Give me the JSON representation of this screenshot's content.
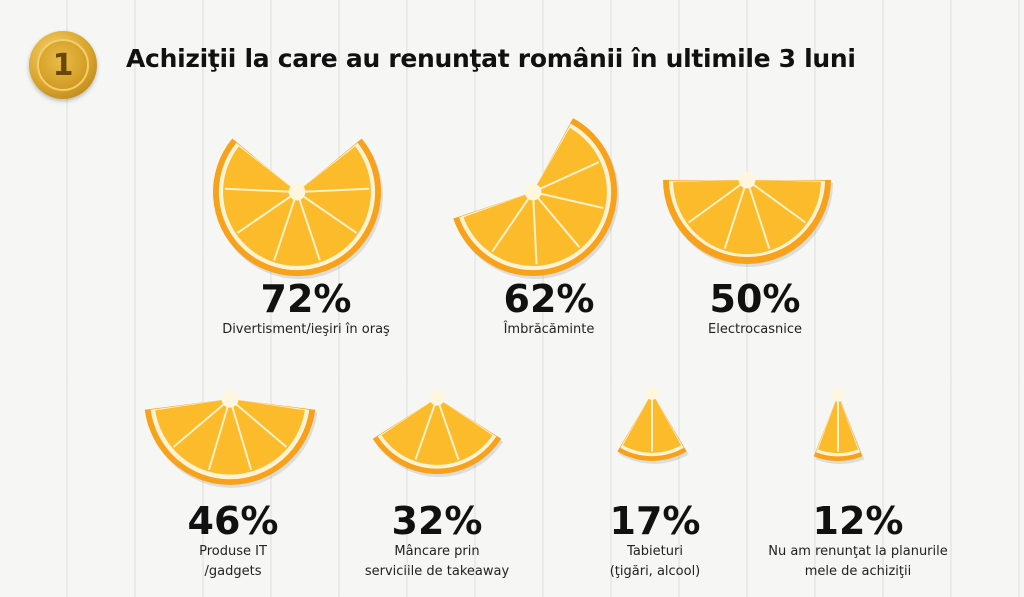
{
  "medal_number": "1",
  "title": "Achiziţii la care au renunţat românii în ultimile 3 luni",
  "colors": {
    "orange_rind": "#f7a21a",
    "orange_pulp": "#fbbb2a",
    "pith": "#fff3d6",
    "medal_gold": "#d9a42c"
  },
  "chart_data": {
    "type": "pie",
    "title": "Achiziţii la care au renunţat românii în ultimile 3 luni",
    "unit": "%",
    "categories": [
      "Divertisment/ieşiri în oraş",
      "Îmbrăcăminte",
      "Electrocasnice",
      "Produse IT /gadgets",
      "Mâncare prin serviciile de takeaway",
      "Tabieturi (ţigări, alcool)",
      "Nu am renunţat la planurile mele de achiziţii"
    ],
    "values": [
      72,
      62,
      50,
      46,
      32,
      17,
      12
    ],
    "items": [
      {
        "value": 72,
        "value_label": "72%",
        "label_lines": [
          "Divertisment/ieşiri în oraş"
        ]
      },
      {
        "value": 62,
        "value_label": "62%",
        "label_lines": [
          "Îmbrăcăminte"
        ]
      },
      {
        "value": 50,
        "value_label": "50%",
        "label_lines": [
          "Electrocasnice"
        ]
      },
      {
        "value": 46,
        "value_label": "46%",
        "label_lines": [
          "Produse IT",
          "/gadgets"
        ]
      },
      {
        "value": 32,
        "value_label": "32%",
        "label_lines": [
          "Mâncare prin",
          "serviciile de takeaway"
        ]
      },
      {
        "value": 17,
        "value_label": "17%",
        "label_lines": [
          "Tabieturi",
          "(ţigări, alcool)"
        ]
      },
      {
        "value": 12,
        "value_label": "12%",
        "label_lines": [
          "Nu am renunţat la planurile",
          "mele de achiziţii"
        ]
      }
    ]
  }
}
